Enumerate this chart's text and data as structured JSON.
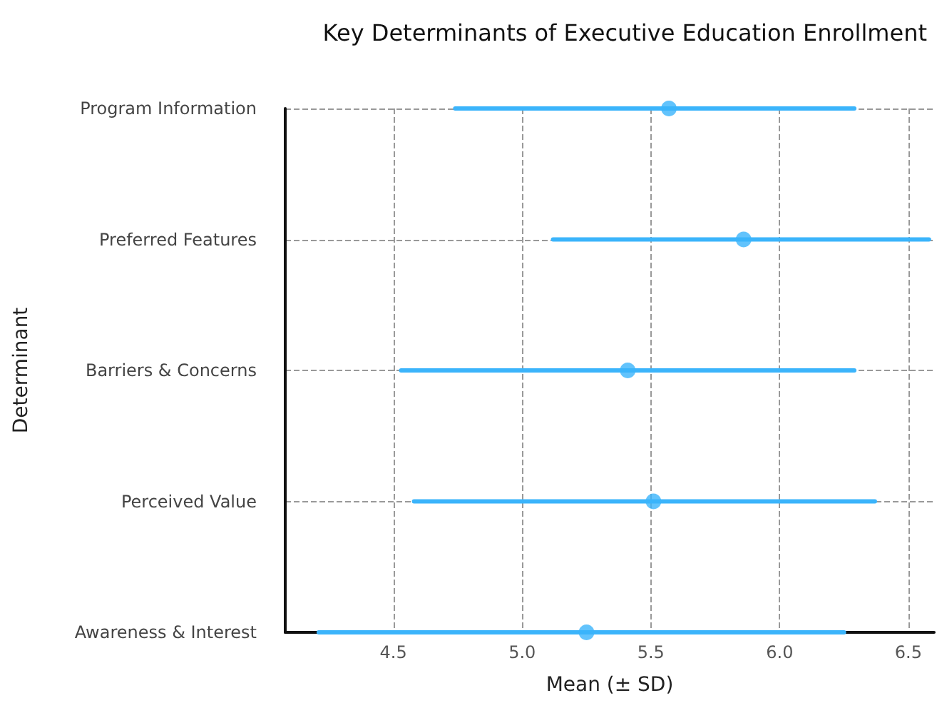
{
  "chart_data": {
    "type": "scatter",
    "orientation": "horizontal",
    "title": "Key Determinants of Executive Education Enrollment",
    "xlabel": "Mean (± SD)",
    "ylabel": "Determinant",
    "categories": [
      "Program Information",
      "Preferred Features",
      "Barriers & Concerns",
      "Perceived Value",
      "Awareness & Interest"
    ],
    "values": [
      5.57,
      5.86,
      5.41,
      5.51,
      5.25
    ],
    "errors": [
      [
        4.74,
        6.29
      ],
      [
        5.12,
        6.58
      ],
      [
        4.53,
        6.29
      ],
      [
        4.58,
        6.37
      ],
      [
        4.21,
        6.25
      ]
    ],
    "color": "#3bb4fb",
    "marker": "circle",
    "xlim": [
      4.08,
      6.6
    ],
    "xticks": [
      4.5,
      {
        "value": 5.0,
        "label": "5.0"
      },
      5.5,
      {
        "value": 6.0,
        "label": "6.0"
      },
      6.5
    ],
    "grid": true
  }
}
